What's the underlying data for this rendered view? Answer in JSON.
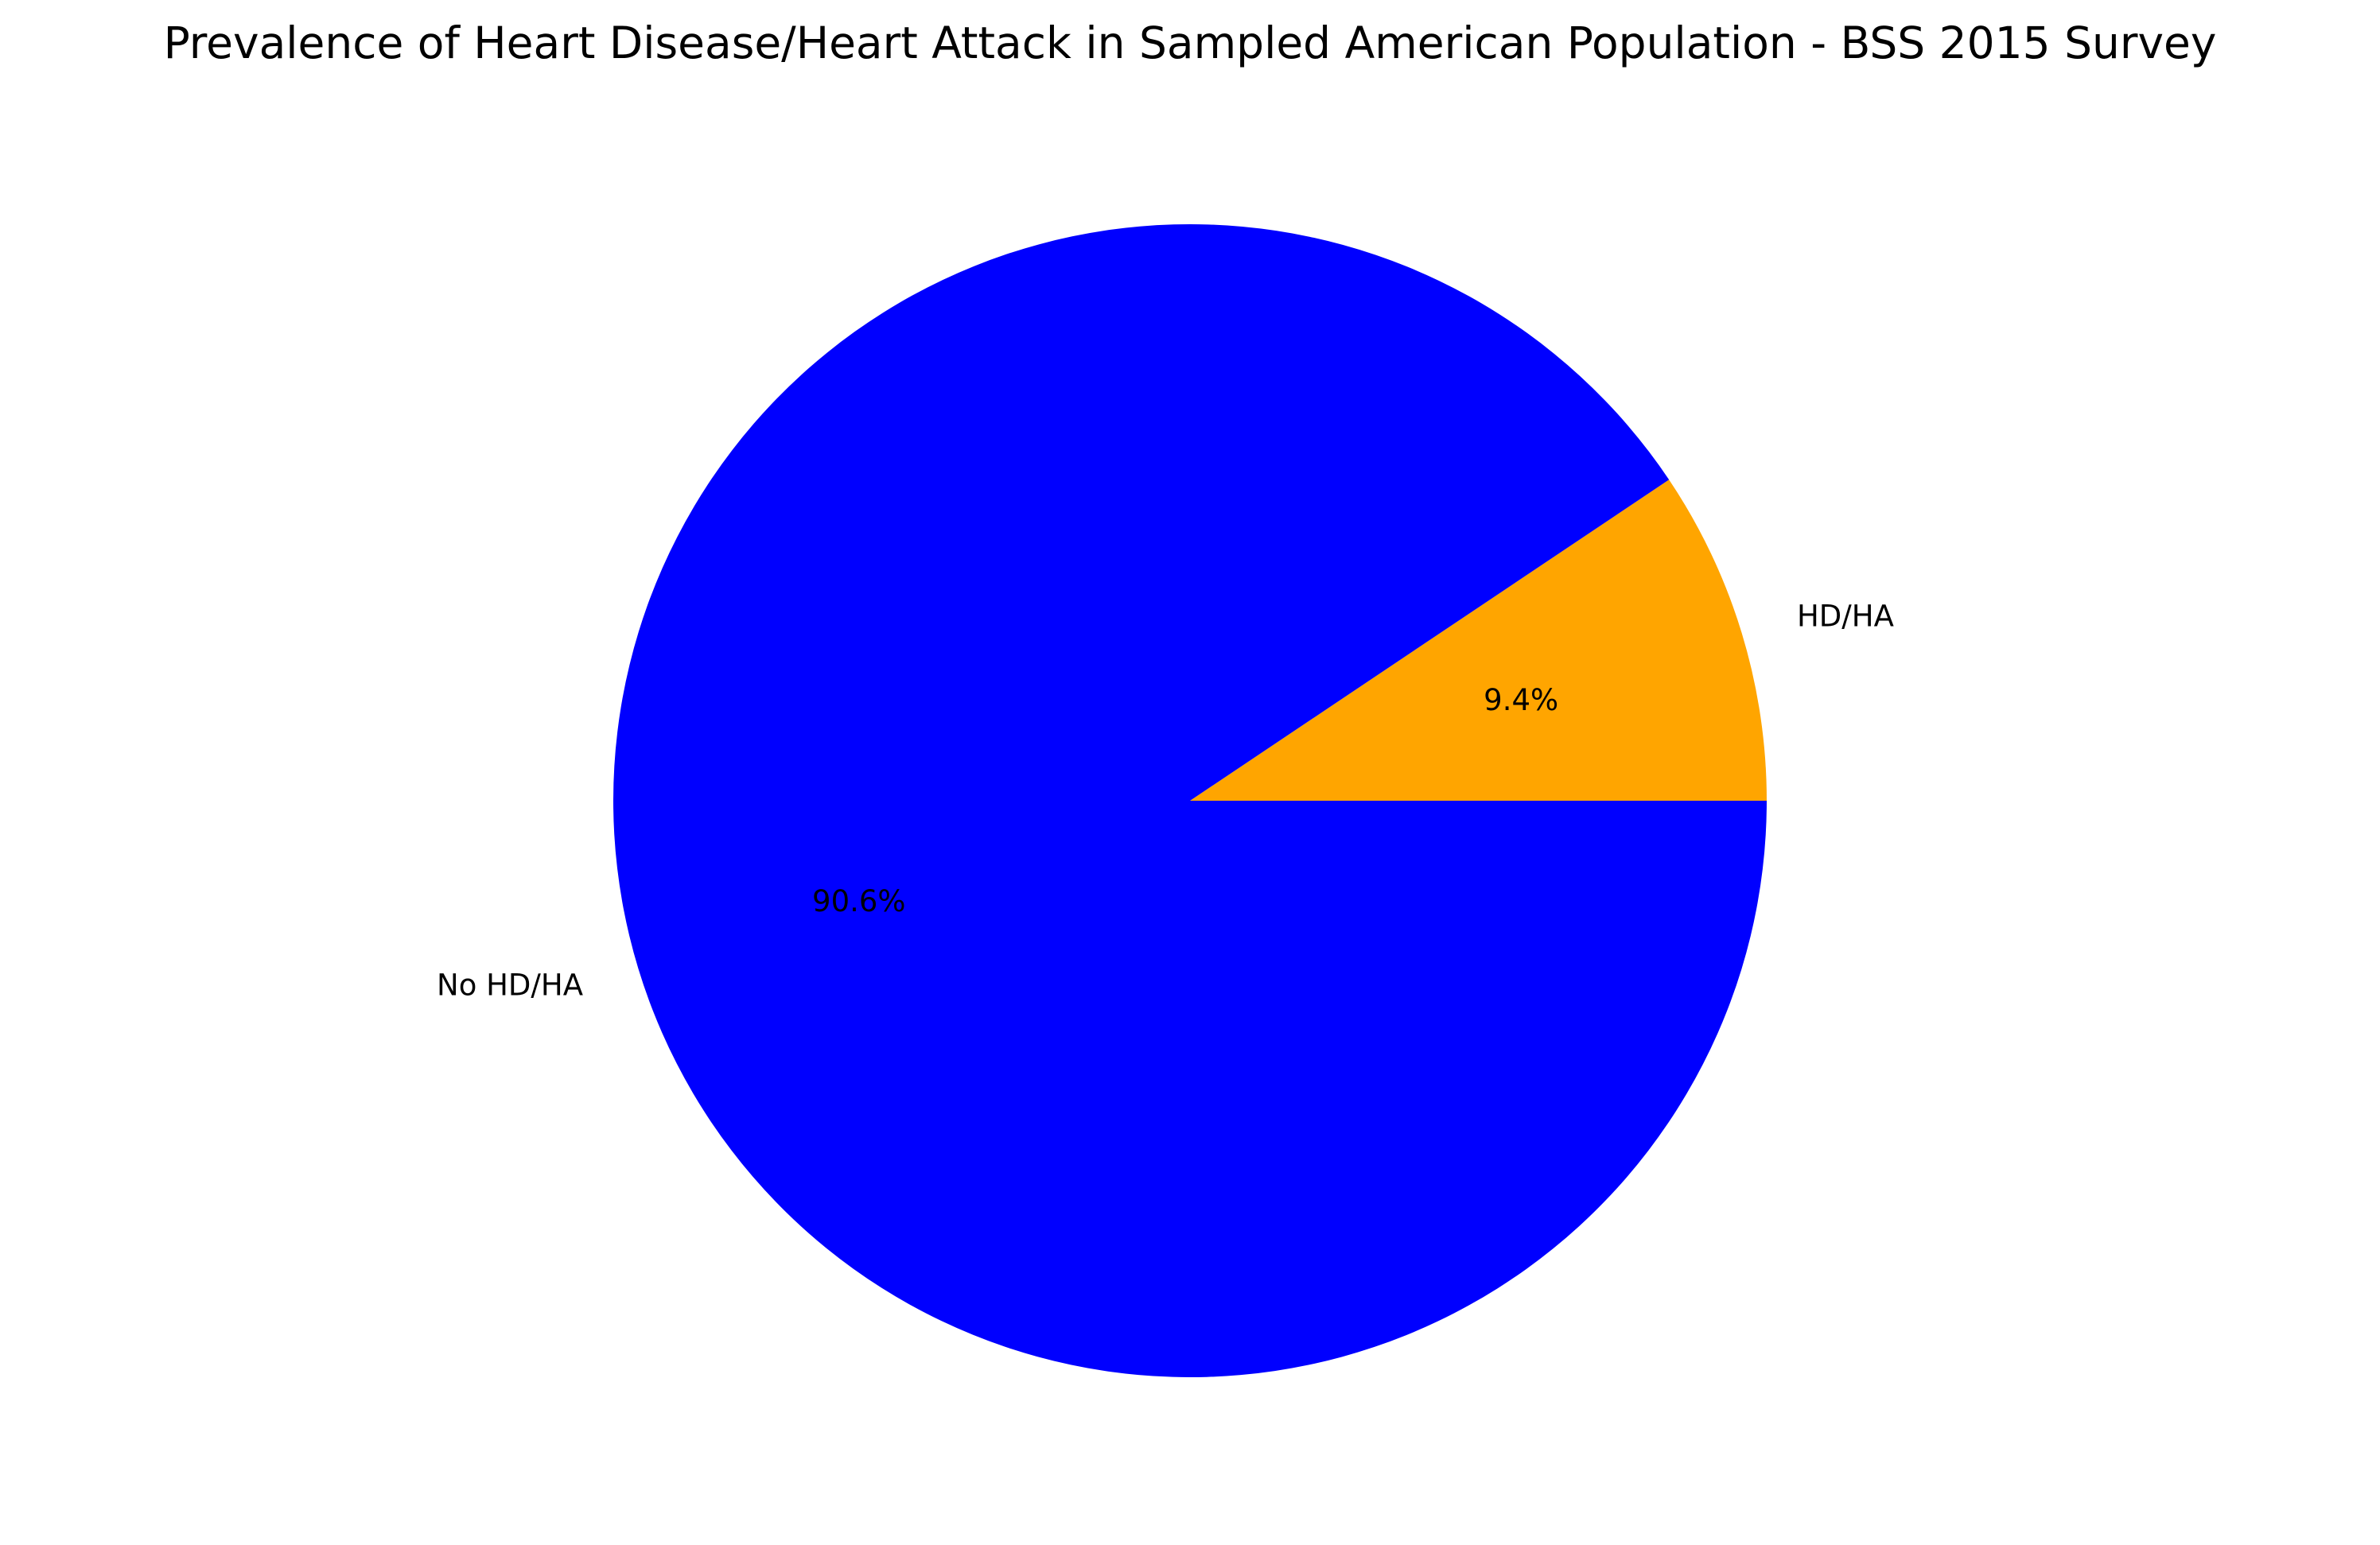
{
  "chart_data": {
    "type": "pie",
    "title": "Prevalence of Heart Disease/Heart Attack in Sampled American Population - BSS 2015 Survey",
    "slices": [
      {
        "label": "HD/HA",
        "value": 9.4,
        "pct_label": "9.4%",
        "color": "#ffa500"
      },
      {
        "label": "No HD/HA",
        "value": 90.6,
        "pct_label": "90.6%",
        "color": "#0000ff"
      }
    ],
    "start_angle_deg": 0,
    "direction": "counterclockwise",
    "legend": "none"
  }
}
